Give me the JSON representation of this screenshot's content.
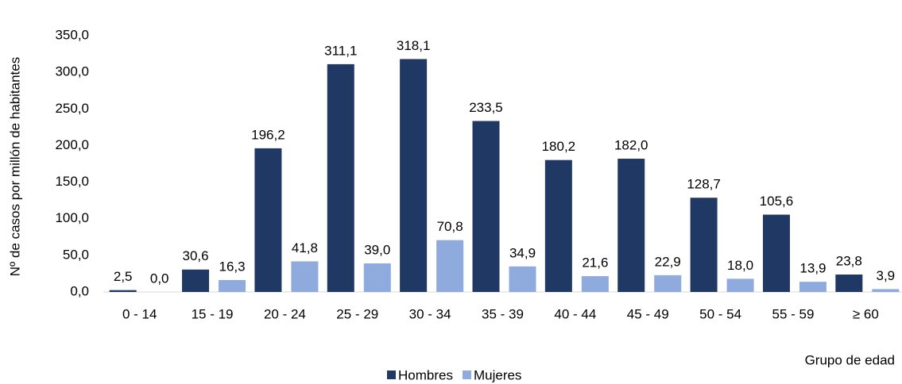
{
  "chart_data": {
    "type": "bar",
    "y_label": "Nº de casos por millón de habitantes",
    "x_label": "Grupo de edad",
    "categories": [
      "0 - 14",
      "15 - 19",
      "20 - 24",
      "25 - 29",
      "30 - 34",
      "35 - 39",
      "40 - 44",
      "45 - 49",
      "50 - 54",
      "55 - 59",
      "≥ 60"
    ],
    "series": [
      {
        "name": "Hombres",
        "color": "#203864",
        "values": [
          2.5,
          30.6,
          196.2,
          311.1,
          318.1,
          233.5,
          180.2,
          182.0,
          128.7,
          105.6,
          23.8
        ],
        "value_labels": [
          "2,5",
          "30,6",
          "196,2",
          "311,1",
          "318,1",
          "233,5",
          "180,2",
          "182,0",
          "128,7",
          "105,6",
          "23,8"
        ]
      },
      {
        "name": "Mujeres",
        "color": "#8faadc",
        "values": [
          0.0,
          16.3,
          41.8,
          39.0,
          70.8,
          34.9,
          21.6,
          22.9,
          18.0,
          13.9,
          3.9
        ],
        "value_labels": [
          "0,0",
          "16,3",
          "41,8",
          "39,0",
          "70,8",
          "34,9",
          "21,6",
          "22,9",
          "18,0",
          "13,9",
          "3,9"
        ]
      }
    ],
    "ylim": [
      0,
      350
    ],
    "yticks": [
      {
        "value": 0,
        "label": "0,0"
      },
      {
        "value": 50,
        "label": "50,0"
      },
      {
        "value": 100,
        "label": "100,0"
      },
      {
        "value": 150,
        "label": "150,0"
      },
      {
        "value": 200,
        "label": "200,0"
      },
      {
        "value": 250,
        "label": "250,0"
      },
      {
        "value": 300,
        "label": "300,0"
      },
      {
        "value": 350,
        "label": "350,0"
      }
    ],
    "grid": false,
    "legend": "bottom"
  }
}
